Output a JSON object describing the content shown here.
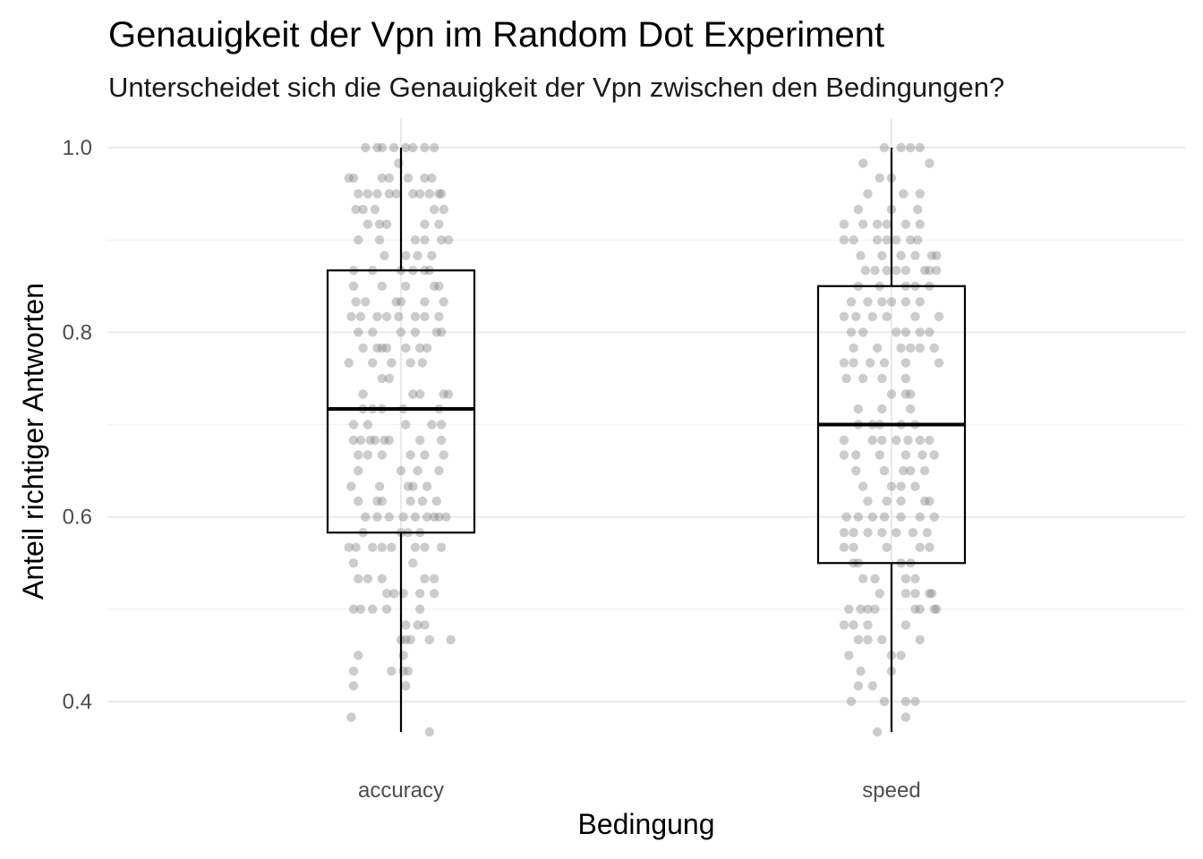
{
  "chart_data": {
    "type": "box",
    "title": "Genauigkeit der Vpn im Random Dot Experiment",
    "subtitle": "Unterscheidet sich die Genauigkeit der Vpn zwischen den Bedingungen?",
    "xlabel": "Bedingung",
    "ylabel": "Anteil richtiger Antworten",
    "categories": [
      "accuracy",
      "speed"
    ],
    "ylim": [
      0.357,
      1.02
    ],
    "yticks": [
      0.4,
      0.6,
      0.8,
      1.0
    ],
    "ytick_labels": [
      "0.4",
      "0.6",
      "0.8",
      "1.0"
    ],
    "grid": true,
    "jitter_color": "#808080",
    "box_color": "#000000",
    "boxes": [
      {
        "category": "accuracy",
        "min": 0.367,
        "q1": 0.583,
        "median": 0.717,
        "q3": 0.867,
        "max": 1.0
      },
      {
        "category": "speed",
        "min": 0.367,
        "q1": 0.55,
        "median": 0.7,
        "q3": 0.85,
        "max": 1.0
      }
    ],
    "points": [
      {
        "category": "accuracy",
        "y": [
          1.0,
          1.0,
          1.0,
          1.0,
          1.0,
          1.0,
          1.0,
          1.0,
          0.983,
          0.967,
          0.967,
          0.967,
          0.967,
          0.967,
          0.967,
          0.967,
          0.95,
          0.95,
          0.95,
          0.95,
          0.95,
          0.95,
          0.95,
          0.95,
          0.95,
          0.95,
          0.933,
          0.933,
          0.933,
          0.933,
          0.933,
          0.917,
          0.917,
          0.917,
          0.917,
          0.917,
          0.9,
          0.9,
          0.9,
          0.9,
          0.9,
          0.9,
          0.883,
          0.883,
          0.883,
          0.883,
          0.867,
          0.867,
          0.867,
          0.867,
          0.867,
          0.867,
          0.85,
          0.85,
          0.85,
          0.85,
          0.85,
          0.833,
          0.833,
          0.833,
          0.833,
          0.833,
          0.833,
          0.817,
          0.817,
          0.817,
          0.817,
          0.817,
          0.817,
          0.817,
          0.817,
          0.8,
          0.8,
          0.8,
          0.8,
          0.8,
          0.8,
          0.783,
          0.783,
          0.783,
          0.783,
          0.783,
          0.783,
          0.783,
          0.767,
          0.767,
          0.767,
          0.767,
          0.767,
          0.75,
          0.75,
          0.733,
          0.733,
          0.733,
          0.733,
          0.733,
          0.717,
          0.717,
          0.717,
          0.717,
          0.717,
          0.7,
          0.7,
          0.7,
          0.7,
          0.7,
          0.683,
          0.683,
          0.683,
          0.683,
          0.683,
          0.683,
          0.683,
          0.683,
          0.667,
          0.667,
          0.667,
          0.667,
          0.667,
          0.667,
          0.65,
          0.65,
          0.65,
          0.65,
          0.633,
          0.633,
          0.633,
          0.633,
          0.633,
          0.617,
          0.617,
          0.617,
          0.617,
          0.617,
          0.617,
          0.6,
          0.6,
          0.6,
          0.6,
          0.6,
          0.6,
          0.6,
          0.6,
          0.6,
          0.583,
          0.583,
          0.583,
          0.583,
          0.567,
          0.567,
          0.567,
          0.567,
          0.567,
          0.567,
          0.567,
          0.567,
          0.55,
          0.55,
          0.533,
          0.533,
          0.533,
          0.533,
          0.533,
          0.517,
          0.517,
          0.517,
          0.517,
          0.517,
          0.5,
          0.5,
          0.5,
          0.5,
          0.5,
          0.483,
          0.483,
          0.483,
          0.467,
          0.467,
          0.467,
          0.467,
          0.467,
          0.45,
          0.45,
          0.433,
          0.433,
          0.433,
          0.433,
          0.417,
          0.417,
          0.383,
          0.367
        ],
        "x": [
          -0.15,
          -0.1,
          -0.03,
          0.02,
          0.05,
          0.1,
          0.14,
          -0.08,
          -0.01,
          -0.22,
          -0.2,
          -0.08,
          -0.05,
          0.03,
          0.1,
          0.13,
          -0.18,
          -0.14,
          -0.1,
          -0.05,
          -0.02,
          0.05,
          0.08,
          0.12,
          0.16,
          0.17,
          -0.19,
          -0.16,
          -0.11,
          0.14,
          0.18,
          -0.14,
          -0.09,
          -0.06,
          0.1,
          0.16,
          -0.18,
          -0.09,
          0.06,
          0.1,
          0.17,
          0.2,
          -0.07,
          0.02,
          0.07,
          0.13,
          -0.2,
          -0.12,
          0.0,
          0.05,
          0.1,
          0.12,
          -0.2,
          -0.08,
          0.02,
          0.14,
          0.16,
          -0.19,
          -0.15,
          -0.02,
          0.0,
          0.1,
          0.18,
          -0.21,
          -0.17,
          -0.1,
          -0.06,
          -0.01,
          0.06,
          0.1,
          0.16,
          -0.18,
          -0.12,
          0.0,
          0.06,
          0.15,
          0.17,
          -0.16,
          -0.1,
          -0.08,
          -0.06,
          0.02,
          0.08,
          0.11,
          -0.22,
          -0.12,
          -0.04,
          0.04,
          0.09,
          -0.08,
          -0.05,
          -0.16,
          0.05,
          0.08,
          0.18,
          0.2,
          -0.16,
          -0.12,
          -0.08,
          0.01,
          0.16,
          -0.2,
          -0.14,
          0.02,
          0.13,
          0.17,
          -0.2,
          -0.17,
          -0.13,
          -0.11,
          -0.07,
          -0.05,
          0.08,
          0.17,
          -0.18,
          -0.14,
          -0.08,
          0.04,
          0.1,
          0.18,
          -0.18,
          0.0,
          0.07,
          0.16,
          -0.21,
          -0.09,
          0.03,
          0.05,
          0.11,
          -0.18,
          -0.1,
          -0.08,
          0.04,
          0.09,
          0.15,
          -0.15,
          -0.1,
          -0.05,
          0.01,
          0.06,
          0.11,
          0.14,
          0.16,
          0.19,
          -0.16,
          0.0,
          0.03,
          0.08,
          -0.22,
          -0.19,
          -0.12,
          -0.08,
          -0.04,
          0.06,
          0.1,
          0.17,
          0.05,
          -0.2,
          -0.18,
          -0.14,
          -0.08,
          0.1,
          0.14,
          -0.06,
          -0.03,
          0.01,
          0.08,
          0.14,
          -0.2,
          -0.17,
          -0.12,
          -0.06,
          0.08,
          0.02,
          0.07,
          0.1,
          0.0,
          0.02,
          0.04,
          0.12,
          0.21,
          -0.18,
          0.01,
          -0.2,
          -0.04,
          0.01,
          0.03,
          -0.2,
          0.02,
          -0.21,
          0.12
        ]
      },
      {
        "category": "speed",
        "y": [
          1.0,
          1.0,
          1.0,
          1.0,
          0.983,
          0.983,
          0.967,
          0.967,
          0.95,
          0.95,
          0.95,
          0.933,
          0.933,
          0.933,
          0.917,
          0.917,
          0.917,
          0.917,
          0.917,
          0.917,
          0.9,
          0.9,
          0.9,
          0.9,
          0.9,
          0.9,
          0.9,
          0.883,
          0.883,
          0.883,
          0.883,
          0.883,
          0.883,
          0.867,
          0.867,
          0.867,
          0.867,
          0.867,
          0.867,
          0.867,
          0.867,
          0.85,
          0.85,
          0.85,
          0.85,
          0.85,
          0.833,
          0.833,
          0.833,
          0.833,
          0.833,
          0.833,
          0.817,
          0.817,
          0.817,
          0.817,
          0.817,
          0.817,
          0.8,
          0.8,
          0.8,
          0.8,
          0.8,
          0.8,
          0.783,
          0.783,
          0.783,
          0.783,
          0.783,
          0.783,
          0.767,
          0.767,
          0.767,
          0.767,
          0.767,
          0.767,
          0.75,
          0.75,
          0.75,
          0.75,
          0.733,
          0.733,
          0.733,
          0.717,
          0.717,
          0.717,
          0.7,
          0.7,
          0.7,
          0.7,
          0.7,
          0.683,
          0.683,
          0.683,
          0.683,
          0.683,
          0.683,
          0.683,
          0.667,
          0.667,
          0.667,
          0.667,
          0.667,
          0.667,
          0.65,
          0.65,
          0.65,
          0.65,
          0.65,
          0.633,
          0.633,
          0.633,
          0.633,
          0.617,
          0.617,
          0.617,
          0.617,
          0.617,
          0.6,
          0.6,
          0.6,
          0.6,
          0.6,
          0.6,
          0.6,
          0.583,
          0.583,
          0.583,
          0.583,
          0.583,
          0.583,
          0.583,
          0.567,
          0.567,
          0.567,
          0.567,
          0.567,
          0.55,
          0.55,
          0.55,
          0.55,
          0.533,
          0.533,
          0.533,
          0.533,
          0.517,
          0.517,
          0.517,
          0.517,
          0.517,
          0.5,
          0.5,
          0.5,
          0.5,
          0.5,
          0.5,
          0.5,
          0.5,
          0.483,
          0.483,
          0.483,
          0.483,
          0.467,
          0.467,
          0.467,
          0.467,
          0.45,
          0.45,
          0.45,
          0.433,
          0.433,
          0.417,
          0.417,
          0.4,
          0.4,
          0.4,
          0.4,
          0.383,
          0.367
        ],
        "x": [
          -0.03,
          0.04,
          0.08,
          0.12,
          -0.12,
          0.16,
          -0.05,
          0.0,
          -0.1,
          0.05,
          0.12,
          -0.14,
          0.0,
          0.11,
          -0.2,
          -0.12,
          -0.06,
          -0.02,
          0.06,
          0.12,
          -0.2,
          -0.16,
          -0.06,
          -0.02,
          0.02,
          0.08,
          0.11,
          -0.13,
          -0.04,
          0.04,
          0.1,
          0.17,
          0.19,
          -0.11,
          -0.07,
          -0.02,
          0.02,
          0.06,
          0.14,
          0.16,
          0.19,
          -0.14,
          -0.05,
          0.06,
          0.1,
          0.16,
          -0.17,
          -0.1,
          -0.04,
          0.0,
          0.06,
          0.12,
          -0.2,
          -0.15,
          -0.08,
          -0.02,
          0.1,
          0.2,
          -0.17,
          -0.12,
          0.02,
          0.06,
          0.12,
          0.16,
          -0.16,
          -0.06,
          0.04,
          0.08,
          0.12,
          0.18,
          -0.2,
          -0.16,
          -0.09,
          -0.03,
          0.06,
          0.2,
          -0.19,
          -0.12,
          -0.04,
          0.06,
          0.0,
          0.06,
          0.08,
          -0.14,
          -0.04,
          0.08,
          -0.14,
          -0.08,
          -0.05,
          0.04,
          0.1,
          -0.2,
          -0.08,
          -0.04,
          0.02,
          0.07,
          0.12,
          0.16,
          -0.2,
          -0.15,
          -0.05,
          0.06,
          0.13,
          0.18,
          -0.15,
          -0.03,
          0.05,
          0.08,
          0.14,
          -0.12,
          0.0,
          0.04,
          0.1,
          -0.1,
          -0.02,
          0.04,
          0.14,
          0.16,
          -0.19,
          -0.14,
          -0.08,
          -0.03,
          0.04,
          0.12,
          0.18,
          -0.2,
          -0.16,
          -0.1,
          -0.04,
          0.02,
          0.09,
          0.15,
          -0.2,
          -0.16,
          -0.02,
          0.12,
          0.16,
          -0.16,
          -0.14,
          0.04,
          0.08,
          -0.12,
          -0.07,
          0.06,
          0.1,
          -0.05,
          0.06,
          0.1,
          0.16,
          0.17,
          -0.18,
          -0.13,
          -0.1,
          -0.07,
          0.1,
          0.12,
          0.18,
          0.19,
          -0.2,
          -0.16,
          -0.1,
          0.06,
          -0.14,
          -0.1,
          -0.04,
          0.12,
          -0.18,
          0.0,
          0.04,
          -0.13,
          0.0,
          -0.14,
          -0.08,
          -0.17,
          -0.03,
          0.06,
          0.1,
          0.06,
          -0.06
        ]
      }
    ]
  }
}
